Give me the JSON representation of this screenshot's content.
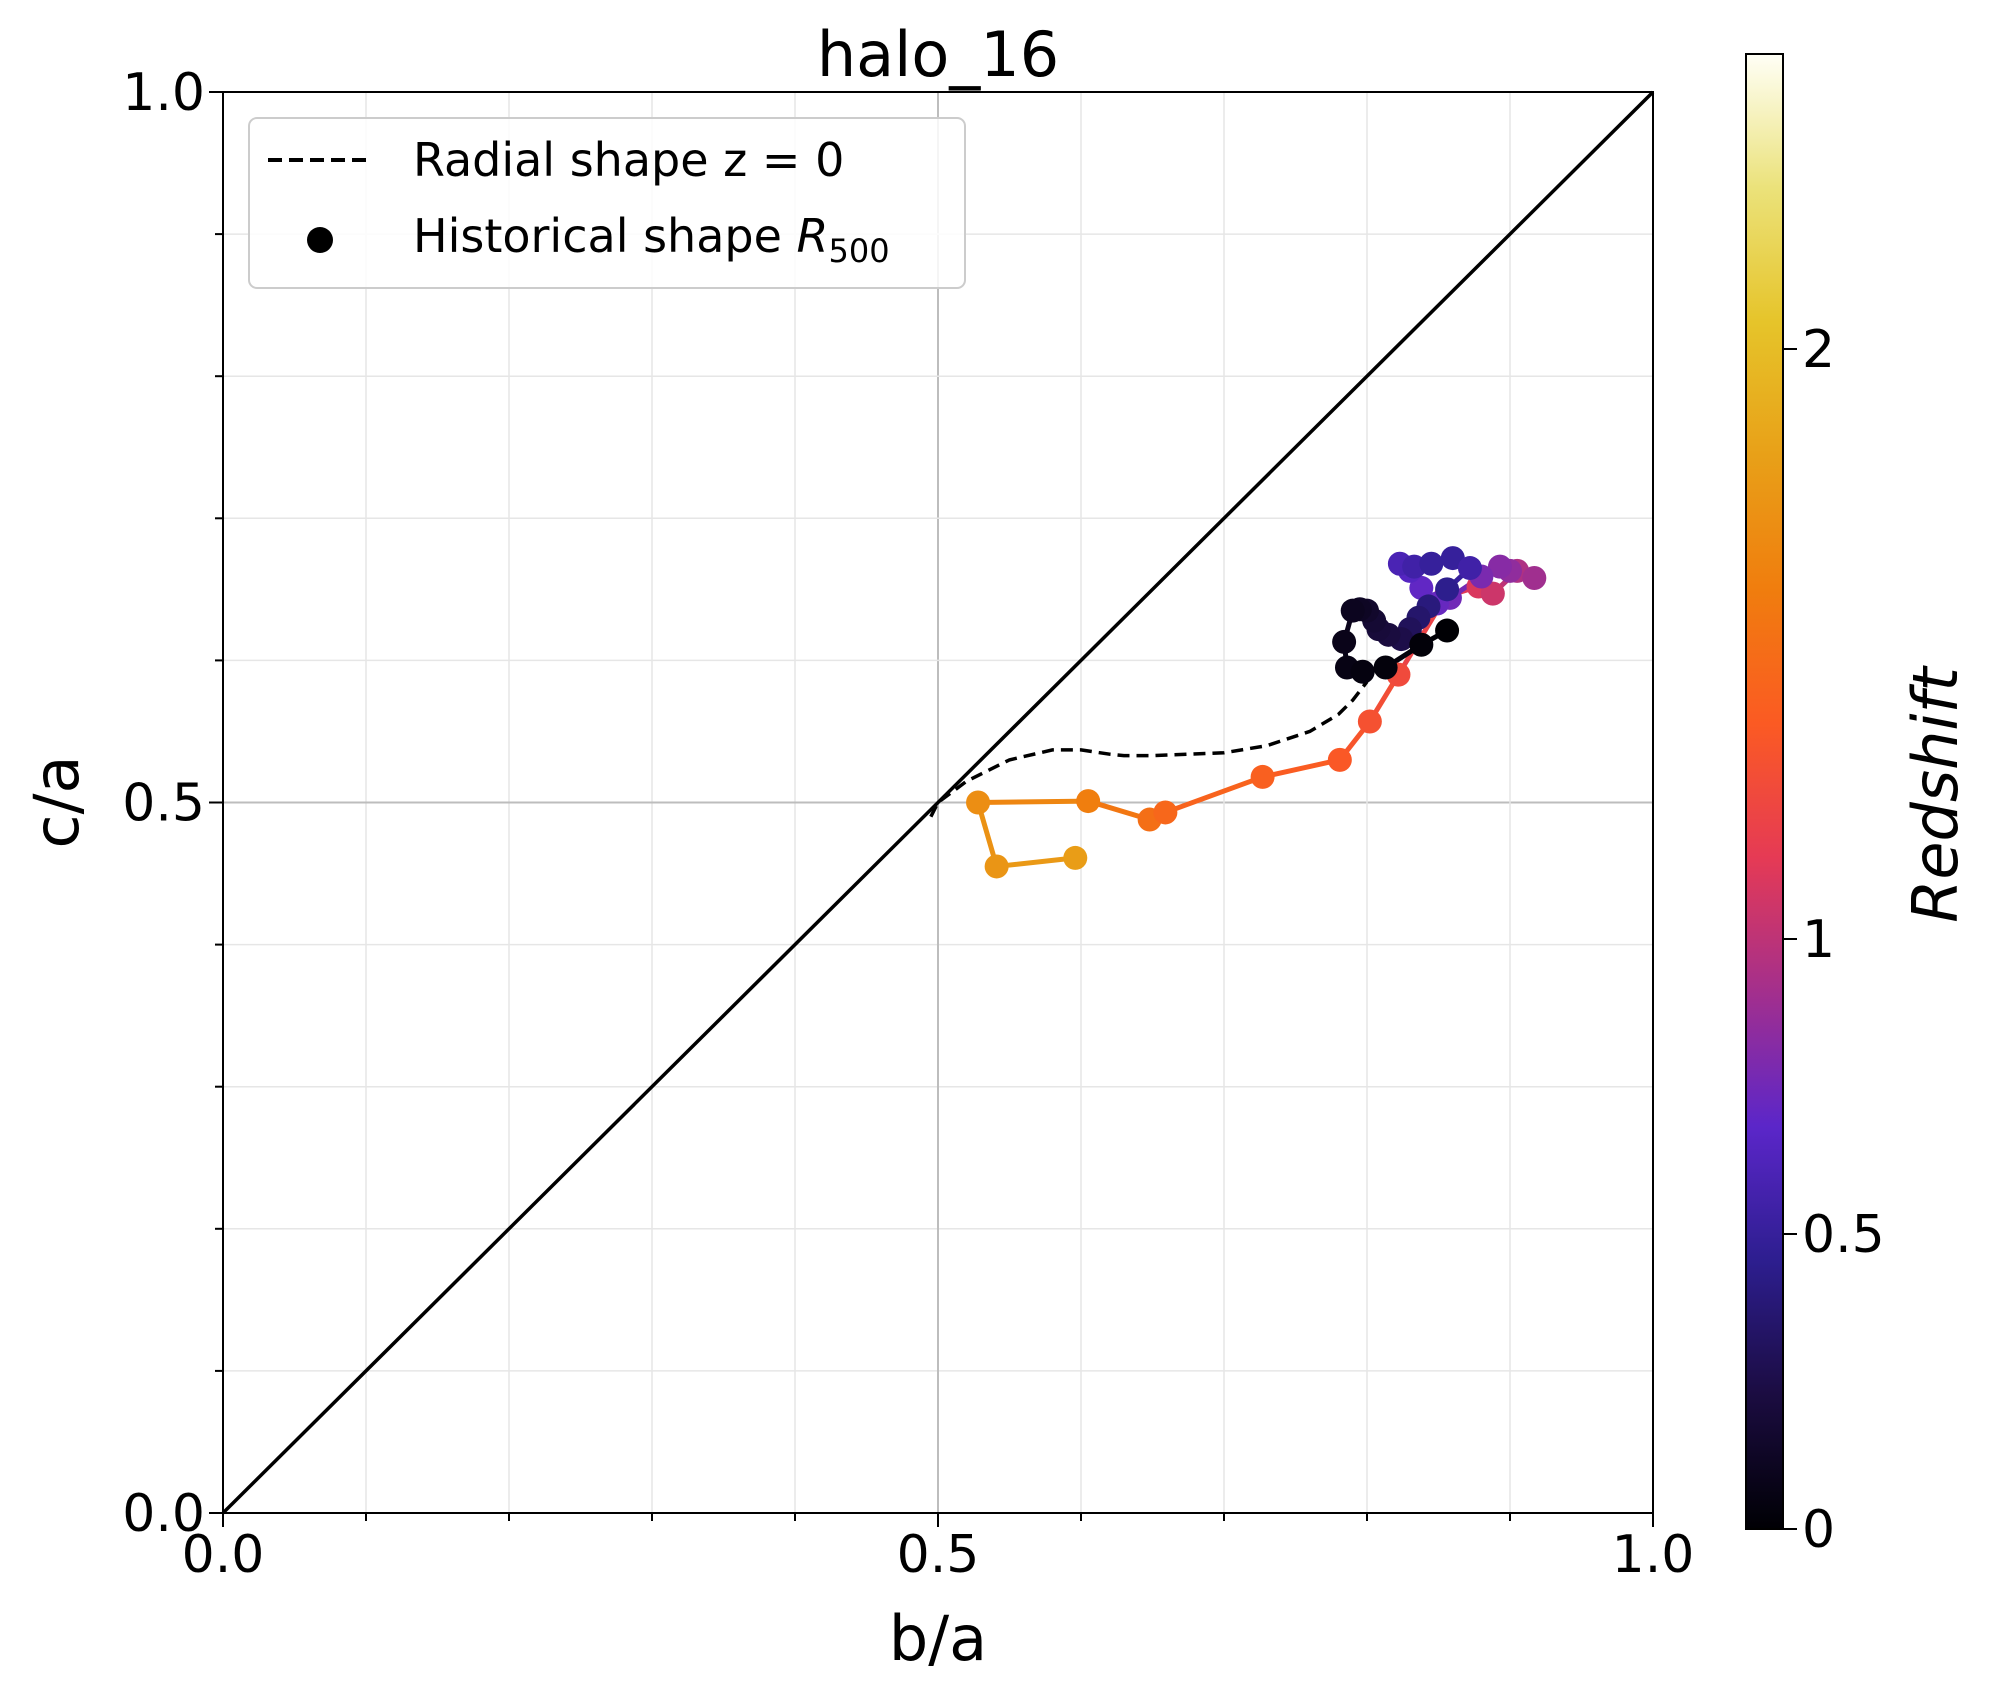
{
  "chart_data": {
    "type": "scatter",
    "title": "halo_16",
    "xlabel": "b/a",
    "ylabel": "c/a",
    "xlim": [
      0,
      1
    ],
    "ylim": [
      0,
      1
    ],
    "xticks": [
      "0.0",
      "0.5",
      "1.0"
    ],
    "yticks": [
      "0.0",
      "0.5",
      "1.0"
    ],
    "grid": true,
    "legend_position": "top-left",
    "legend": [
      {
        "label": "Radial shape z = 0",
        "style": "dashed"
      },
      {
        "label_main": "Historical shape ",
        "label_sym": "R",
        "label_sub": "500",
        "style": "marker"
      }
    ],
    "colorbar": {
      "label": "Redshift",
      "ticks": [
        {
          "label": "0",
          "value": 0
        },
        {
          "label": "0.5",
          "value": 0.5
        },
        {
          "label": "1",
          "value": 1
        },
        {
          "label": "2",
          "value": 2
        }
      ],
      "colormap": [
        "#000004",
        "#1b0c41",
        "#2d1e8f",
        "#5b26c9",
        "#a32f8d",
        "#e53a55",
        "#fb5a23",
        "#f07d0e",
        "#e8a018",
        "#e6c42a",
        "#ebe27a",
        "#fffff6"
      ]
    },
    "diagonal": {
      "from": [
        0,
        0
      ],
      "to": [
        1,
        1
      ],
      "color": "#000000"
    },
    "radial_profile": {
      "color": "#000000",
      "x": [
        0.495,
        0.5,
        0.52,
        0.55,
        0.58,
        0.6,
        0.62,
        0.63,
        0.65,
        0.7,
        0.73,
        0.76,
        0.78,
        0.79,
        0.8
      ],
      "y": [
        0.49,
        0.5,
        0.515,
        0.53,
        0.537,
        0.537,
        0.534,
        0.533,
        0.533,
        0.535,
        0.54,
        0.55,
        0.562,
        0.572,
        0.585
      ]
    },
    "historical_track": {
      "x": [
        0.596,
        0.541,
        0.528,
        0.605,
        0.648,
        0.659,
        0.727,
        0.781,
        0.802,
        0.822,
        0.855,
        0.878,
        0.888,
        0.905,
        0.917,
        0.9,
        0.893,
        0.88,
        0.858,
        0.849,
        0.838,
        0.83,
        0.823,
        0.833,
        0.845,
        0.86,
        0.872,
        0.856,
        0.843,
        0.836,
        0.83,
        0.824,
        0.815,
        0.808,
        0.805,
        0.8,
        0.795,
        0.79,
        0.784,
        0.786,
        0.797,
        0.813,
        0.838,
        0.856
      ],
      "y": [
        0.461,
        0.455,
        0.5,
        0.501,
        0.488,
        0.493,
        0.518,
        0.53,
        0.557,
        0.59,
        0.645,
        0.652,
        0.647,
        0.663,
        0.658,
        0.663,
        0.666,
        0.659,
        0.644,
        0.64,
        0.651,
        0.663,
        0.668,
        0.666,
        0.668,
        0.672,
        0.665,
        0.65,
        0.638,
        0.63,
        0.622,
        0.615,
        0.618,
        0.622,
        0.628,
        0.635,
        0.636,
        0.635,
        0.613,
        0.595,
        0.592,
        0.595,
        0.611,
        0.621
      ],
      "redshift": [
        1.8,
        1.75,
        1.7,
        1.6,
        1.5,
        1.45,
        1.4,
        1.35,
        1.3,
        1.25,
        1.15,
        1.1,
        1.05,
        0.95,
        0.9,
        0.85,
        0.82,
        0.78,
        0.75,
        0.72,
        0.7,
        0.65,
        0.6,
        0.55,
        0.5,
        0.5,
        0.55,
        0.45,
        0.4,
        0.35,
        0.3,
        0.25,
        0.22,
        0.2,
        0.18,
        0.15,
        0.12,
        0.1,
        0.08,
        0.06,
        0.04,
        0.03,
        0.02,
        0.0
      ]
    }
  }
}
